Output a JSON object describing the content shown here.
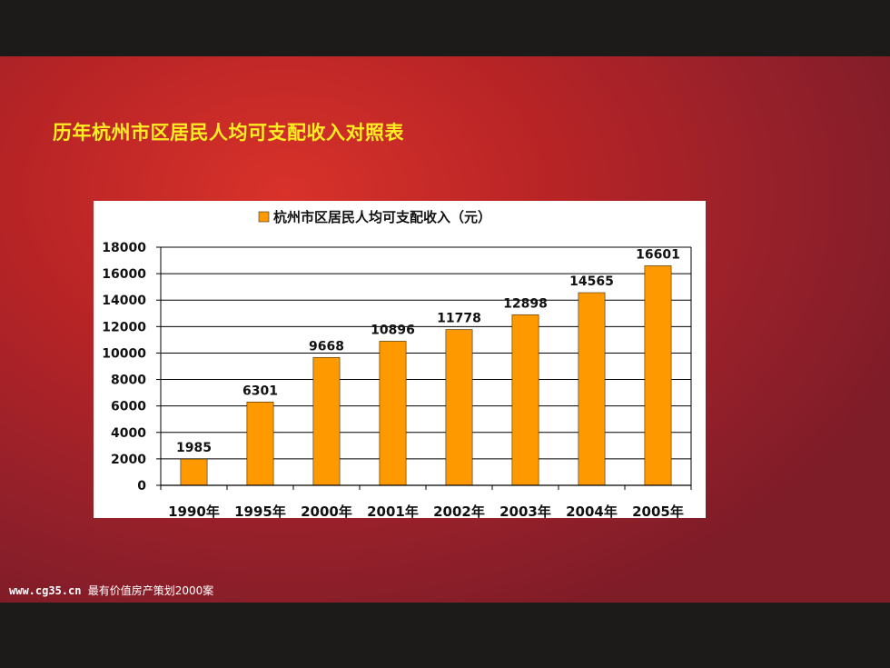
{
  "slide": {
    "title": "历年杭州市区居民人均可支配收入对照表",
    "footer_url": "www.cg35.cn",
    "footer_text": "最有价值房产策划2000案"
  },
  "colors": {
    "bar": "#ff9900",
    "title": "#ffee22",
    "background": "#c0282a"
  },
  "chart_data": {
    "type": "bar",
    "title": "",
    "xlabel": "",
    "ylabel": "",
    "legend_position": "top-center",
    "grid": true,
    "categories": [
      "1990年",
      "1995年",
      "2000年",
      "2001年",
      "2002年",
      "2003年",
      "2004年",
      "2005年"
    ],
    "series": [
      {
        "name": "杭州市区居民人均可支配收入（元）",
        "values": [
          1985,
          6301,
          9668,
          10896,
          11778,
          12898,
          14565,
          16601
        ]
      }
    ],
    "ylim": [
      0,
      18000
    ],
    "yticks": [
      "0",
      "2000",
      "4000",
      "6000",
      "8000",
      "10000",
      "12000",
      "14000",
      "16000",
      "18000"
    ]
  }
}
